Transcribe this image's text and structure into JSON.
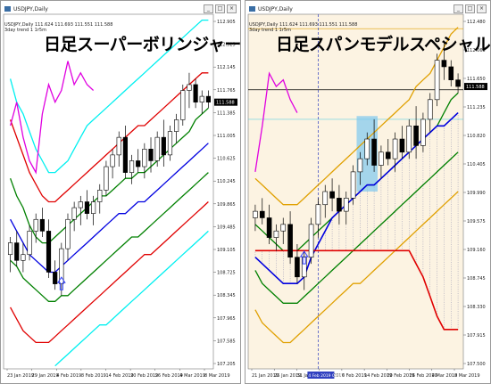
{
  "charts": [
    {
      "window_title": "USDJPY,Daily",
      "header_line1": "USDJPY,Daily 111.624 111.693 111.551 111.588",
      "header_line2": "3day trend 1 1r5m",
      "overlay_title": "日足スーパーボリンジャー",
      "last_price_label": "111.588"
    },
    {
      "window_title": "USDJPY,Daily",
      "header_line1": "USDJPY,Daily 111.624 111.693 111.551 111.588",
      "header_line2": "3day trend 1 1r5m",
      "overlay_title": "日足スパンモデルスペシャル",
      "last_price_label": "111.588",
      "cursor_date_label": "4 Feb 2019 09:00"
    }
  ],
  "chart_data": [
    {
      "type": "candlestick",
      "title": "日足スーパーボリンジャー",
      "symbol": "USDJPY, Daily",
      "y_ticks": [
        "112.905",
        "112.525",
        "112.145",
        "111.765",
        "111.385",
        "111.005",
        "110.625",
        "110.245",
        "109.865",
        "109.485",
        "109.105",
        "108.725",
        "108.345",
        "107.965",
        "107.585",
        "107.205"
      ],
      "x_ticks": [
        "23 Jan 2019",
        "29 Jan 2019",
        "4 Feb 2019",
        "8 Feb 2019",
        "14 Feb 2019",
        "20 Feb 2019",
        "26 Feb 2019",
        "4 Mar 2019",
        "8 Mar 2019"
      ],
      "ylim": [
        107.05,
        113.1
      ],
      "candles": [
        {
          "o": 109.0,
          "h": 109.3,
          "l": 108.7,
          "c": 109.2
        },
        {
          "o": 109.2,
          "h": 109.4,
          "l": 108.8,
          "c": 108.9
        },
        {
          "o": 108.9,
          "h": 109.2,
          "l": 108.7,
          "c": 109.0
        },
        {
          "o": 109.0,
          "h": 109.5,
          "l": 108.9,
          "c": 109.4
        },
        {
          "o": 109.4,
          "h": 109.7,
          "l": 109.2,
          "c": 109.6
        },
        {
          "o": 109.6,
          "h": 109.8,
          "l": 109.3,
          "c": 109.4
        },
        {
          "o": 109.4,
          "h": 109.6,
          "l": 108.6,
          "c": 108.7
        },
        {
          "o": 108.7,
          "h": 108.9,
          "l": 108.4,
          "c": 108.5
        },
        {
          "o": 108.5,
          "h": 109.2,
          "l": 108.3,
          "c": 109.1
        },
        {
          "o": 109.1,
          "h": 109.7,
          "l": 108.9,
          "c": 109.6
        },
        {
          "o": 109.6,
          "h": 109.9,
          "l": 109.4,
          "c": 109.8
        },
        {
          "o": 109.8,
          "h": 110.0,
          "l": 109.5,
          "c": 109.9
        },
        {
          "o": 109.9,
          "h": 110.1,
          "l": 109.6,
          "c": 109.7
        },
        {
          "o": 109.7,
          "h": 110.0,
          "l": 109.5,
          "c": 109.9
        },
        {
          "o": 109.9,
          "h": 110.2,
          "l": 109.7,
          "c": 110.1
        },
        {
          "o": 110.1,
          "h": 110.6,
          "l": 110.0,
          "c": 110.5
        },
        {
          "o": 110.5,
          "h": 110.8,
          "l": 110.3,
          "c": 110.7
        },
        {
          "o": 110.7,
          "h": 111.1,
          "l": 110.5,
          "c": 111.0
        },
        {
          "o": 111.0,
          "h": 111.2,
          "l": 110.3,
          "c": 110.4
        },
        {
          "o": 110.4,
          "h": 110.7,
          "l": 110.2,
          "c": 110.6
        },
        {
          "o": 110.6,
          "h": 110.8,
          "l": 110.4,
          "c": 110.5
        },
        {
          "o": 110.5,
          "h": 110.9,
          "l": 110.3,
          "c": 110.8
        },
        {
          "o": 110.8,
          "h": 111.0,
          "l": 110.4,
          "c": 110.6
        },
        {
          "o": 110.6,
          "h": 111.1,
          "l": 110.5,
          "c": 111.0
        },
        {
          "o": 111.0,
          "h": 111.3,
          "l": 110.5,
          "c": 110.7
        },
        {
          "o": 110.7,
          "h": 111.2,
          "l": 110.6,
          "c": 111.1
        },
        {
          "o": 111.1,
          "h": 111.4,
          "l": 110.9,
          "c": 111.3
        },
        {
          "o": 111.3,
          "h": 111.9,
          "l": 111.2,
          "c": 111.8
        },
        {
          "o": 111.8,
          "h": 112.1,
          "l": 111.5,
          "c": 111.9
        },
        {
          "o": 111.9,
          "h": 112.0,
          "l": 111.5,
          "c": 111.6
        },
        {
          "o": 111.6,
          "h": 111.8,
          "l": 111.4,
          "c": 111.7
        },
        {
          "o": 111.7,
          "h": 111.8,
          "l": 111.5,
          "c": 111.6
        }
      ],
      "series": [
        {
          "name": "+3σ",
          "color": "#00f0f0",
          "values": [
            112.0,
            111.6,
            111.4,
            111.1,
            110.8,
            110.6,
            110.4,
            110.4,
            110.5,
            110.6,
            110.8,
            111.0,
            111.2,
            111.3,
            111.4,
            111.5,
            111.6,
            111.7,
            111.8,
            111.9,
            112.0,
            112.1,
            112.2,
            112.3,
            112.4,
            112.5,
            112.6,
            112.7,
            112.8,
            112.9,
            113.0,
            113.0
          ]
        },
        {
          "name": "+2σ",
          "color": "#e00000",
          "values": [
            111.3,
            111.0,
            110.7,
            110.4,
            110.2,
            110.0,
            109.9,
            109.9,
            110.0,
            110.1,
            110.2,
            110.3,
            110.4,
            110.5,
            110.6,
            110.7,
            110.8,
            110.9,
            111.0,
            111.1,
            111.2,
            111.2,
            111.3,
            111.4,
            111.5,
            111.6,
            111.7,
            111.8,
            111.9,
            112.0,
            112.1,
            112.1
          ]
        },
        {
          "name": "+1σ",
          "color": "#008000",
          "values": [
            110.3,
            110.0,
            109.8,
            109.5,
            109.3,
            109.2,
            109.2,
            109.3,
            109.4,
            109.5,
            109.6,
            109.7,
            109.8,
            109.9,
            110.0,
            110.0,
            110.1,
            110.2,
            110.3,
            110.3,
            110.4,
            110.4,
            110.5,
            110.6,
            110.7,
            110.8,
            110.9,
            111.0,
            111.1,
            111.3,
            111.4,
            111.5
          ]
        },
        {
          "name": "21MA",
          "color": "#0000e0",
          "values": [
            109.6,
            109.4,
            109.2,
            109.0,
            108.9,
            108.8,
            108.7,
            108.7,
            108.8,
            108.9,
            109.0,
            109.1,
            109.2,
            109.3,
            109.4,
            109.5,
            109.6,
            109.7,
            109.7,
            109.8,
            109.9,
            109.9,
            110.0,
            110.1,
            110.2,
            110.3,
            110.4,
            110.5,
            110.6,
            110.7,
            110.8,
            110.9
          ]
        },
        {
          "name": "-1σ",
          "color": "#008000",
          "values": [
            108.9,
            108.8,
            108.6,
            108.5,
            108.4,
            108.3,
            108.2,
            108.2,
            108.3,
            108.3,
            108.4,
            108.5,
            108.6,
            108.7,
            108.8,
            108.9,
            109.0,
            109.1,
            109.2,
            109.3,
            109.3,
            109.4,
            109.5,
            109.6,
            109.7,
            109.8,
            109.9,
            110.0,
            110.1,
            110.2,
            110.3,
            110.4
          ]
        },
        {
          "name": "-2σ",
          "color": "#e00000",
          "values": [
            108.1,
            107.9,
            107.7,
            107.6,
            107.5,
            107.5,
            107.5,
            107.6,
            107.7,
            107.8,
            107.9,
            108.0,
            108.1,
            108.2,
            108.3,
            108.4,
            108.5,
            108.6,
            108.7,
            108.8,
            108.9,
            109.0,
            109.0,
            109.1,
            109.2,
            109.3,
            109.4,
            109.5,
            109.6,
            109.7,
            109.8,
            109.9
          ]
        },
        {
          "name": "-3σ",
          "color": "#00f0f0",
          "values": [
            null,
            null,
            null,
            null,
            null,
            null,
            null,
            107.1,
            107.2,
            107.3,
            107.4,
            107.5,
            107.6,
            107.7,
            107.8,
            107.8,
            107.9,
            108.0,
            108.1,
            108.2,
            108.3,
            108.4,
            108.5,
            108.6,
            108.7,
            108.8,
            108.9,
            109.0,
            109.1,
            109.2,
            109.3,
            109.4
          ]
        },
        {
          "name": "遅行スパン",
          "color": "#e000e0",
          "values": [
            111.2,
            111.6,
            111.0,
            110.6,
            110.4,
            111.4,
            111.9,
            111.6,
            111.8,
            112.3,
            111.9,
            112.1,
            111.9,
            111.8,
            null,
            null,
            null,
            null,
            null,
            null,
            null,
            null,
            null,
            null,
            null,
            null,
            null,
            null,
            null,
            null,
            null,
            null
          ]
        }
      ],
      "annotations": [
        {
          "type": "arrow-up",
          "index": 8,
          "y": 108.4,
          "color": "#3040ff"
        }
      ]
    },
    {
      "type": "candlestick",
      "title": "日足スパンモデルスペシャル",
      "symbol": "USDJPY, Daily",
      "y_ticks": [
        "112.480",
        "112.065",
        "111.650",
        "111.235",
        "110.820",
        "110.405",
        "109.990",
        "109.575",
        "109.160",
        "108.745",
        "108.330",
        "107.915",
        "107.500"
      ],
      "x_ticks": [
        "21 Jan 2019",
        "25 Jan 2019",
        "31 Jan 2019",
        "4 Feb 2019",
        "8 Feb 2019",
        "14 Feb 2019",
        "20 Feb 2019",
        "26 Feb 2019",
        "4 Mar 2019",
        "8 Mar 2019"
      ],
      "ylim": [
        107.3,
        112.7
      ],
      "horizontal_lines": [
        111.55,
        112.48,
        111.1
      ],
      "candles": [
        {
          "o": 109.6,
          "h": 109.8,
          "l": 109.4,
          "c": 109.7
        },
        {
          "o": 109.7,
          "h": 109.9,
          "l": 109.5,
          "c": 109.6
        },
        {
          "o": 109.6,
          "h": 109.8,
          "l": 109.2,
          "c": 109.3
        },
        {
          "o": 109.3,
          "h": 109.5,
          "l": 109.1,
          "c": 109.4
        },
        {
          "o": 109.4,
          "h": 109.6,
          "l": 109.2,
          "c": 109.5
        },
        {
          "o": 109.5,
          "h": 109.7,
          "l": 108.9,
          "c": 109.0
        },
        {
          "o": 109.0,
          "h": 109.2,
          "l": 108.6,
          "c": 108.7
        },
        {
          "o": 108.7,
          "h": 109.1,
          "l": 108.5,
          "c": 109.0
        },
        {
          "o": 109.0,
          "h": 109.6,
          "l": 108.9,
          "c": 109.5
        },
        {
          "o": 109.5,
          "h": 109.9,
          "l": 109.3,
          "c": 109.8
        },
        {
          "o": 109.8,
          "h": 110.1,
          "l": 109.6,
          "c": 110.0
        },
        {
          "o": 110.0,
          "h": 110.2,
          "l": 109.7,
          "c": 109.9
        },
        {
          "o": 109.9,
          "h": 110.1,
          "l": 109.5,
          "c": 109.7
        },
        {
          "o": 109.7,
          "h": 110.0,
          "l": 109.5,
          "c": 109.9
        },
        {
          "o": 109.9,
          "h": 110.4,
          "l": 109.8,
          "c": 110.3
        },
        {
          "o": 110.3,
          "h": 110.6,
          "l": 110.1,
          "c": 110.5
        },
        {
          "o": 110.5,
          "h": 110.9,
          "l": 110.4,
          "c": 110.8
        },
        {
          "o": 110.8,
          "h": 111.1,
          "l": 110.3,
          "c": 110.4
        },
        {
          "o": 110.4,
          "h": 110.7,
          "l": 110.2,
          "c": 110.6
        },
        {
          "o": 110.6,
          "h": 110.8,
          "l": 110.4,
          "c": 110.5
        },
        {
          "o": 110.5,
          "h": 110.9,
          "l": 110.3,
          "c": 110.8
        },
        {
          "o": 110.8,
          "h": 111.0,
          "l": 110.5,
          "c": 110.6
        },
        {
          "o": 110.6,
          "h": 111.1,
          "l": 110.5,
          "c": 111.0
        },
        {
          "o": 111.0,
          "h": 111.3,
          "l": 110.5,
          "c": 110.7
        },
        {
          "o": 110.7,
          "h": 111.2,
          "l": 110.6,
          "c": 111.1
        },
        {
          "o": 111.1,
          "h": 111.5,
          "l": 110.9,
          "c": 111.4
        },
        {
          "o": 111.4,
          "h": 112.1,
          "l": 111.3,
          "c": 112.0
        },
        {
          "o": 112.0,
          "h": 112.3,
          "l": 111.7,
          "c": 111.9
        },
        {
          "o": 111.9,
          "h": 112.0,
          "l": 111.6,
          "c": 111.7
        },
        {
          "o": 111.7,
          "h": 111.8,
          "l": 111.5,
          "c": 111.6
        }
      ],
      "series": [
        {
          "name": "upper-orange",
          "color": "#e0a000",
          "values": [
            110.2,
            110.1,
            110.0,
            109.9,
            109.8,
            109.8,
            109.8,
            109.9,
            110.0,
            110.1,
            110.2,
            110.3,
            110.4,
            110.5,
            110.6,
            110.7,
            110.8,
            110.9,
            111.0,
            111.1,
            111.2,
            111.3,
            111.4,
            111.6,
            111.7,
            111.8,
            112.0,
            112.2,
            112.4,
            112.5
          ]
        },
        {
          "name": "upper-green",
          "color": "#008000",
          "values": [
            109.5,
            109.4,
            109.3,
            109.2,
            109.1,
            109.1,
            109.1,
            109.2,
            109.3,
            109.4,
            109.5,
            109.6,
            109.7,
            109.8,
            109.9,
            110.0,
            110.1,
            110.1,
            110.2,
            110.3,
            110.4,
            110.5,
            110.6,
            110.7,
            110.8,
            110.9,
            111.0,
            111.2,
            111.4,
            111.5
          ]
        },
        {
          "name": "blue",
          "color": "#0000e0",
          "values": [
            109.0,
            108.9,
            108.8,
            108.7,
            108.6,
            108.6,
            108.6,
            108.7,
            109.0,
            109.2,
            109.4,
            109.6,
            109.7,
            109.8,
            109.9,
            110.0,
            110.1,
            110.1,
            110.2,
            110.3,
            110.4,
            110.5,
            110.6,
            110.7,
            110.8,
            110.9,
            111.0,
            111.0,
            111.1,
            111.2
          ]
        },
        {
          "name": "lower-green",
          "color": "#008000",
          "values": [
            108.8,
            108.6,
            108.5,
            108.4,
            108.3,
            108.3,
            108.3,
            108.4,
            108.5,
            108.6,
            108.7,
            108.8,
            108.9,
            109.0,
            109.1,
            109.2,
            109.3,
            109.4,
            109.5,
            109.6,
            109.7,
            109.8,
            109.9,
            110.0,
            110.1,
            110.2,
            110.3,
            110.4,
            110.5,
            110.6
          ]
        },
        {
          "name": "lower-orange",
          "color": "#e0a000",
          "values": [
            108.2,
            108.0,
            107.9,
            107.8,
            107.7,
            107.7,
            107.8,
            107.9,
            108.0,
            108.1,
            108.2,
            108.3,
            108.4,
            108.5,
            108.6,
            108.6,
            108.7,
            108.8,
            108.9,
            109.0,
            109.1,
            109.2,
            109.3,
            109.4,
            109.5,
            109.6,
            109.7,
            109.8,
            109.9,
            110.0
          ]
        },
        {
          "name": "red",
          "color": "#e00000",
          "values": [
            109.1,
            109.1,
            109.1,
            109.1,
            109.1,
            109.1,
            109.1,
            109.1,
            109.1,
            109.1,
            109.1,
            109.1,
            109.1,
            109.1,
            109.1,
            109.1,
            109.1,
            109.1,
            109.1,
            109.1,
            109.1,
            109.1,
            109.1,
            108.9,
            108.7,
            108.4,
            108.1,
            107.9,
            107.9,
            107.9
          ]
        },
        {
          "name": "遅行スパン",
          "color": "#e000e0",
          "values": [
            110.3,
            111.0,
            111.8,
            111.6,
            111.7,
            111.4,
            111.2,
            null,
            null,
            null,
            null,
            null,
            null,
            null,
            null,
            null,
            null,
            null,
            null,
            null,
            null,
            null,
            null,
            null,
            null,
            null,
            null,
            null,
            null,
            null
          ]
        }
      ],
      "annotations": [
        {
          "type": "arrow-up",
          "index": 7,
          "y": 108.9,
          "color": "#3040ff"
        }
      ]
    }
  ]
}
